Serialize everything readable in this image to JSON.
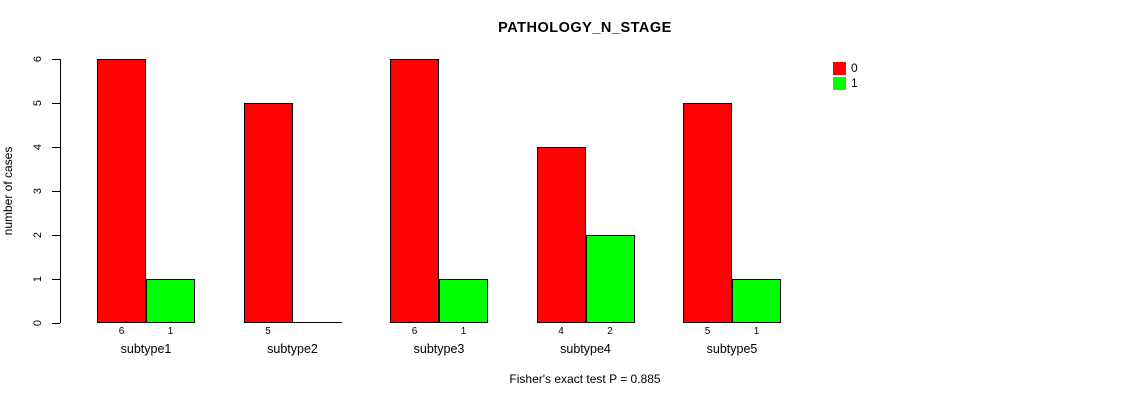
{
  "chart_data": {
    "type": "bar",
    "title": "PATHOLOGY_N_STAGE",
    "ylabel": "number of cases",
    "xlabel": "",
    "footer": "Fisher's exact test P = 0.885",
    "categories": [
      "subtype1",
      "subtype2",
      "subtype3",
      "subtype4",
      "subtype5"
    ],
    "series": [
      {
        "name": "0",
        "color": "#FF0000",
        "values": [
          6,
          5,
          6,
          4,
          5
        ]
      },
      {
        "name": "1",
        "color": "#00FF00",
        "values": [
          1,
          0,
          1,
          2,
          1
        ]
      }
    ],
    "ylim": [
      0,
      6
    ],
    "yticks": [
      0,
      1,
      2,
      3,
      4,
      5,
      6
    ],
    "grid": false,
    "legend_position": "right",
    "bar_border_color": "#000000",
    "background_color": "#FFFFFF"
  }
}
